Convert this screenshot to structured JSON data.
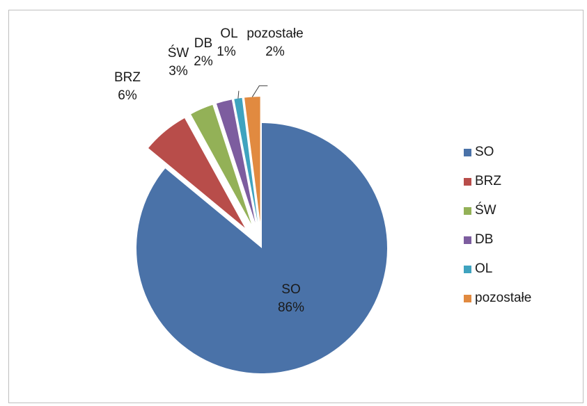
{
  "chart_data": {
    "type": "pie",
    "exploded": true,
    "legend_position": "right",
    "categories": [
      "SO",
      "BRZ",
      "ŚW",
      "DB",
      "OL",
      "pozostałe"
    ],
    "values": [
      86,
      6,
      3,
      2,
      1,
      2
    ],
    "value_labels": [
      "86%",
      "6%",
      "3%",
      "2%",
      "1%",
      "2%"
    ],
    "colors": [
      "#4a72a8",
      "#b84d4a",
      "#93b157",
      "#7d5d9f",
      "#3fa3bf",
      "#e18a40"
    ]
  }
}
